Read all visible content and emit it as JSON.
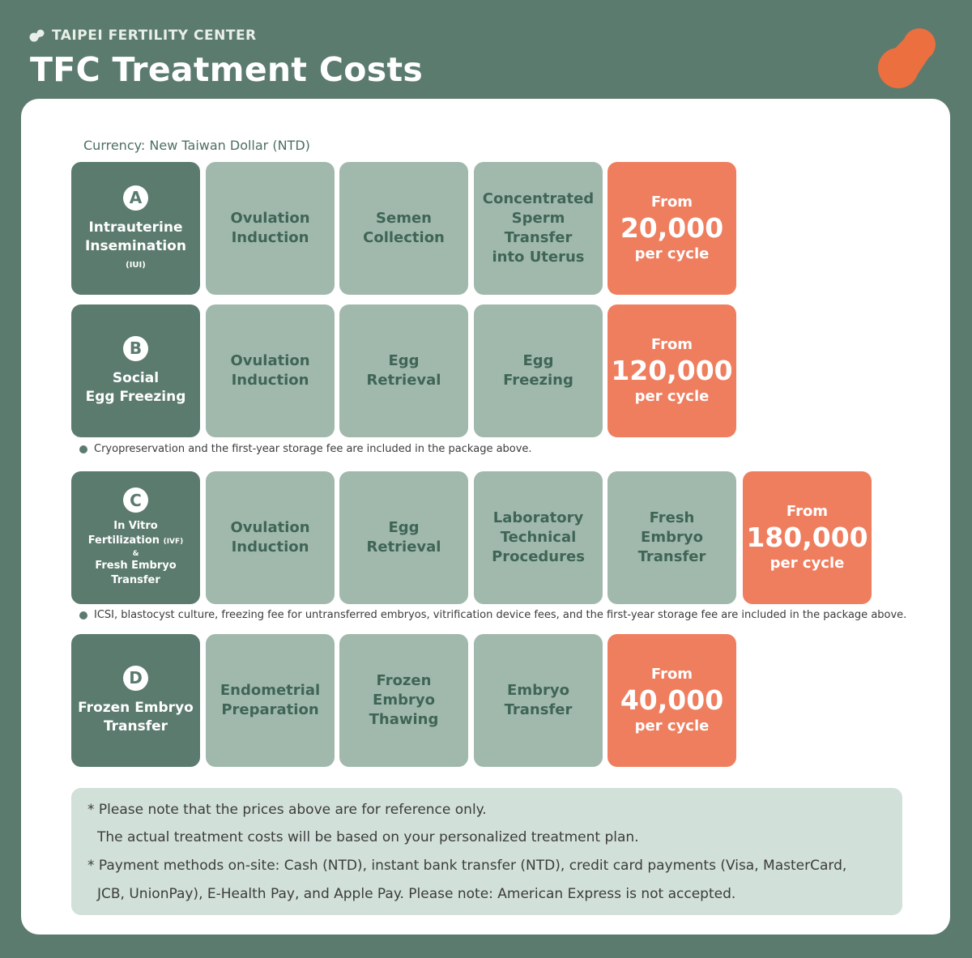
{
  "header": {
    "brand": "TAIPEI FERTILITY CENTER",
    "title": "TFC Treatment Costs"
  },
  "currency_note": "Currency: New Taiwan Dollar (NTD)",
  "colors": {
    "background": "#5b7b6e",
    "step_tile": "#a1b9ad",
    "price_tile": "#ef7e5f",
    "info_box": "#d1e0d8"
  },
  "plans": {
    "a": {
      "letter": "A",
      "name": [
        "Intrauterine",
        "Insemination"
      ],
      "abbr": "(IUI)",
      "steps": [
        [
          "Ovulation",
          "Induction"
        ],
        [
          "Semen",
          "Collection"
        ],
        [
          "Concentrated",
          "Sperm",
          "Transfer",
          "into Uterus"
        ]
      ],
      "price": {
        "from": "From",
        "amount": "20,000",
        "unit": "per cycle"
      }
    },
    "b": {
      "letter": "B",
      "name": [
        "Social",
        "Egg Freezing"
      ],
      "steps": [
        [
          "Ovulation",
          "Induction"
        ],
        [
          "Egg",
          "Retrieval"
        ],
        [
          "Egg",
          "Freezing"
        ]
      ],
      "price": {
        "from": "From",
        "amount": "120,000",
        "unit": "per cycle"
      },
      "note": "Cryopreservation and the first-year storage fee are included in the package above."
    },
    "c": {
      "letter": "C",
      "name": [
        "In Vitro",
        "Fertilization"
      ],
      "abbr": "(IVF)",
      "amp": "&",
      "name2": [
        "Fresh Embryo",
        "Transfer"
      ],
      "steps": [
        [
          "Ovulation",
          "Induction"
        ],
        [
          "Egg",
          "Retrieval"
        ],
        [
          "Laboratory",
          "Technical",
          "Procedures"
        ],
        [
          "Fresh",
          "Embryo",
          "Transfer"
        ]
      ],
      "price": {
        "from": "From",
        "amount": "180,000",
        "unit": "per cycle"
      },
      "note": "ICSI, blastocyst culture, freezing fee for untransferred embryos, vitrification device fees, and the first-year storage fee are included in the package above."
    },
    "d": {
      "letter": "D",
      "name": [
        "Frozen Embryo",
        "Transfer"
      ],
      "steps": [
        [
          "Endometrial",
          "Preparation"
        ],
        [
          "Frozen",
          "Embryo",
          "Thawing"
        ],
        [
          "Embryo",
          "Transfer"
        ]
      ],
      "price": {
        "from": "From",
        "amount": "40,000",
        "unit": "per cycle"
      }
    }
  },
  "footnotes": [
    "* Please note that the prices above are for reference only.",
    "The actual treatment costs will be based on your personalized treatment plan.",
    "* Payment methods on-site: Cash (NTD), instant bank transfer (NTD), credit card payments (Visa, MasterCard,",
    "JCB, UnionPay), E-Health Pay, and Apple Pay. Please note: American Express is not accepted."
  ]
}
